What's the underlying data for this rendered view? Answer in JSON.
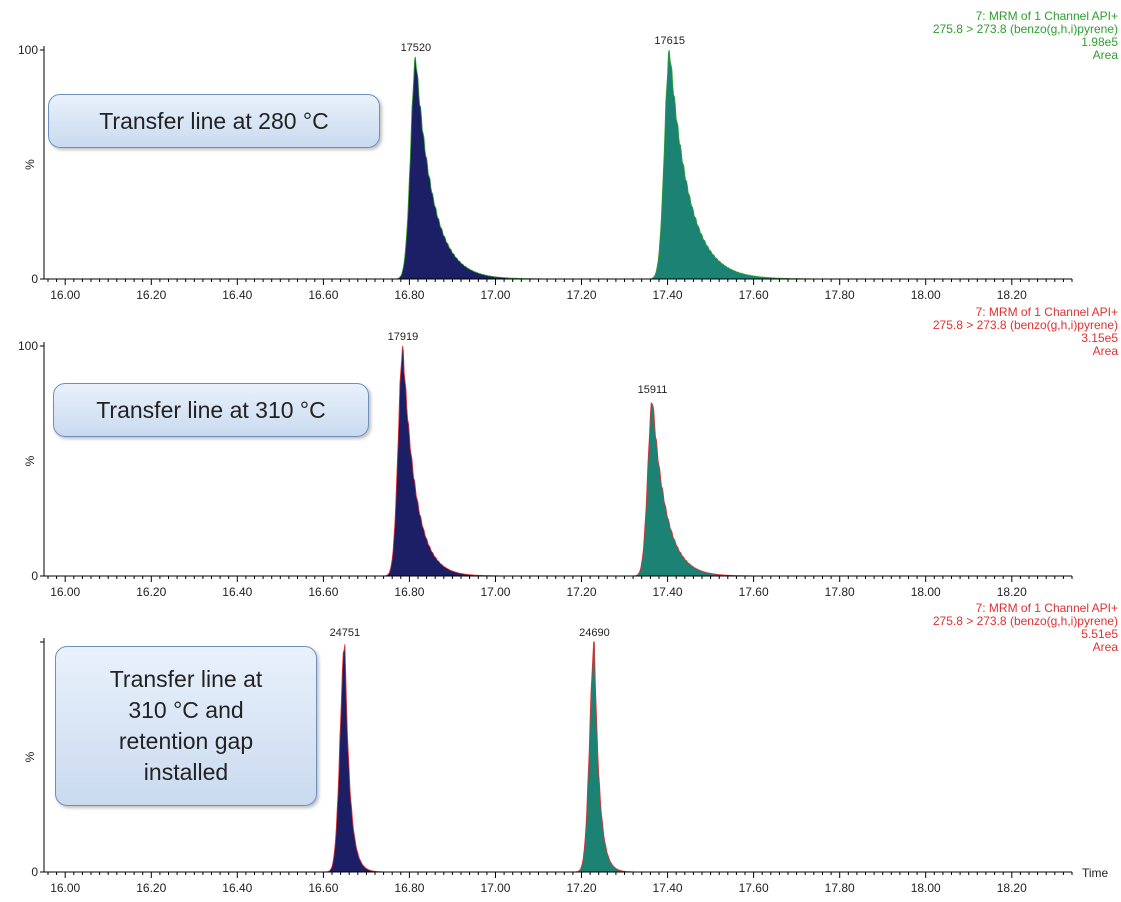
{
  "chart_data": [
    {
      "type": "area",
      "panel_label": "Transfer line at 280 °C",
      "trace": {
        "title": "7: MRM of 1 Channel API+",
        "transition": "275.8 > 273.8 (benzo(g,h,i)pyrene)",
        "intensity": "1.98e5",
        "mode": "Area",
        "color": "#2e9e2e"
      },
      "y_axis": {
        "label": "%",
        "ticks": [
          "0",
          "100"
        ]
      },
      "x_axis": {
        "label": "",
        "ticks": [
          "16.00",
          "16.20",
          "16.40",
          "16.60",
          "16.80",
          "17.00",
          "17.20",
          "17.40",
          "17.60",
          "17.80",
          "18.00",
          "18.20"
        ]
      },
      "xlim": [
        15.96,
        18.34
      ],
      "ylim": [
        0,
        100
      ],
      "peaks": [
        {
          "label": "17520",
          "rt": 16.815,
          "height": 97,
          "start": 16.74,
          "tail": 0.04,
          "rise": 0.012,
          "end": 17.3,
          "color": "#1c1f66"
        },
        {
          "label": "17615",
          "rt": 17.405,
          "height": 100,
          "start": 17.34,
          "tail": 0.045,
          "rise": 0.012,
          "end": 18.34,
          "color": "#1c8274"
        }
      ]
    },
    {
      "type": "area",
      "panel_label": "Transfer line at 310 °C",
      "trace": {
        "title": "7: MRM of 1 Channel API+",
        "transition": "275.8 > 273.8 (benzo(g,h,i)pyrene)",
        "intensity": "3.15e5",
        "mode": "Area",
        "color": "#e03030"
      },
      "y_axis": {
        "label": "%",
        "ticks": [
          "0",
          "100"
        ]
      },
      "x_axis": {
        "label": "",
        "ticks": [
          "16.00",
          "16.20",
          "16.40",
          "16.60",
          "16.80",
          "17.00",
          "17.20",
          "17.40",
          "17.60",
          "17.80",
          "18.00",
          "18.20"
        ]
      },
      "xlim": [
        15.96,
        18.34
      ],
      "ylim": [
        0,
        100
      ],
      "peaks": [
        {
          "label": "17919",
          "rt": 16.785,
          "height": 100,
          "start": 16.72,
          "tail": 0.03,
          "rise": 0.011,
          "end": 17.04,
          "color": "#1c1f66"
        },
        {
          "label": "15911",
          "rt": 17.365,
          "height": 77,
          "start": 17.29,
          "tail": 0.032,
          "rise": 0.011,
          "end": 17.62,
          "color": "#1c8274"
        }
      ]
    },
    {
      "type": "area",
      "panel_label": "Transfer line at 310 °C and retention gap installed",
      "trace": {
        "title": "7: MRM of 1 Channel API+",
        "transition": "275.8 > 273.8 (benzo(g,h,i)pyrene)",
        "intensity": "5.51e5",
        "mode": "Area",
        "color": "#e03030"
      },
      "y_axis": {
        "label": "%",
        "ticks": [
          "0",
          ""
        ]
      },
      "x_axis": {
        "label": "Time",
        "ticks": [
          "16.00",
          "16.20",
          "16.40",
          "16.60",
          "16.80",
          "17.00",
          "17.20",
          "17.40",
          "17.60",
          "17.80",
          "18.00",
          "18.20"
        ]
      },
      "xlim": [
        15.96,
        18.34
      ],
      "ylim": [
        0,
        100
      ],
      "peaks": [
        {
          "label": "24751",
          "rt": 16.65,
          "height": 100,
          "start": 16.6,
          "tail": 0.012,
          "rise": 0.011,
          "end": 16.78,
          "color": "#1c1f66"
        },
        {
          "label": "24690",
          "rt": 17.23,
          "height": 100,
          "start": 17.18,
          "tail": 0.012,
          "rise": 0.011,
          "end": 17.36,
          "color": "#1c8274"
        }
      ]
    }
  ],
  "labels": {
    "box1": [
      "Transfer line at 280 °C"
    ],
    "box2": [
      "Transfer line at 310 °C"
    ],
    "box3": [
      "Transfer line at",
      "310 °C and",
      "retention gap",
      "installed"
    ]
  }
}
